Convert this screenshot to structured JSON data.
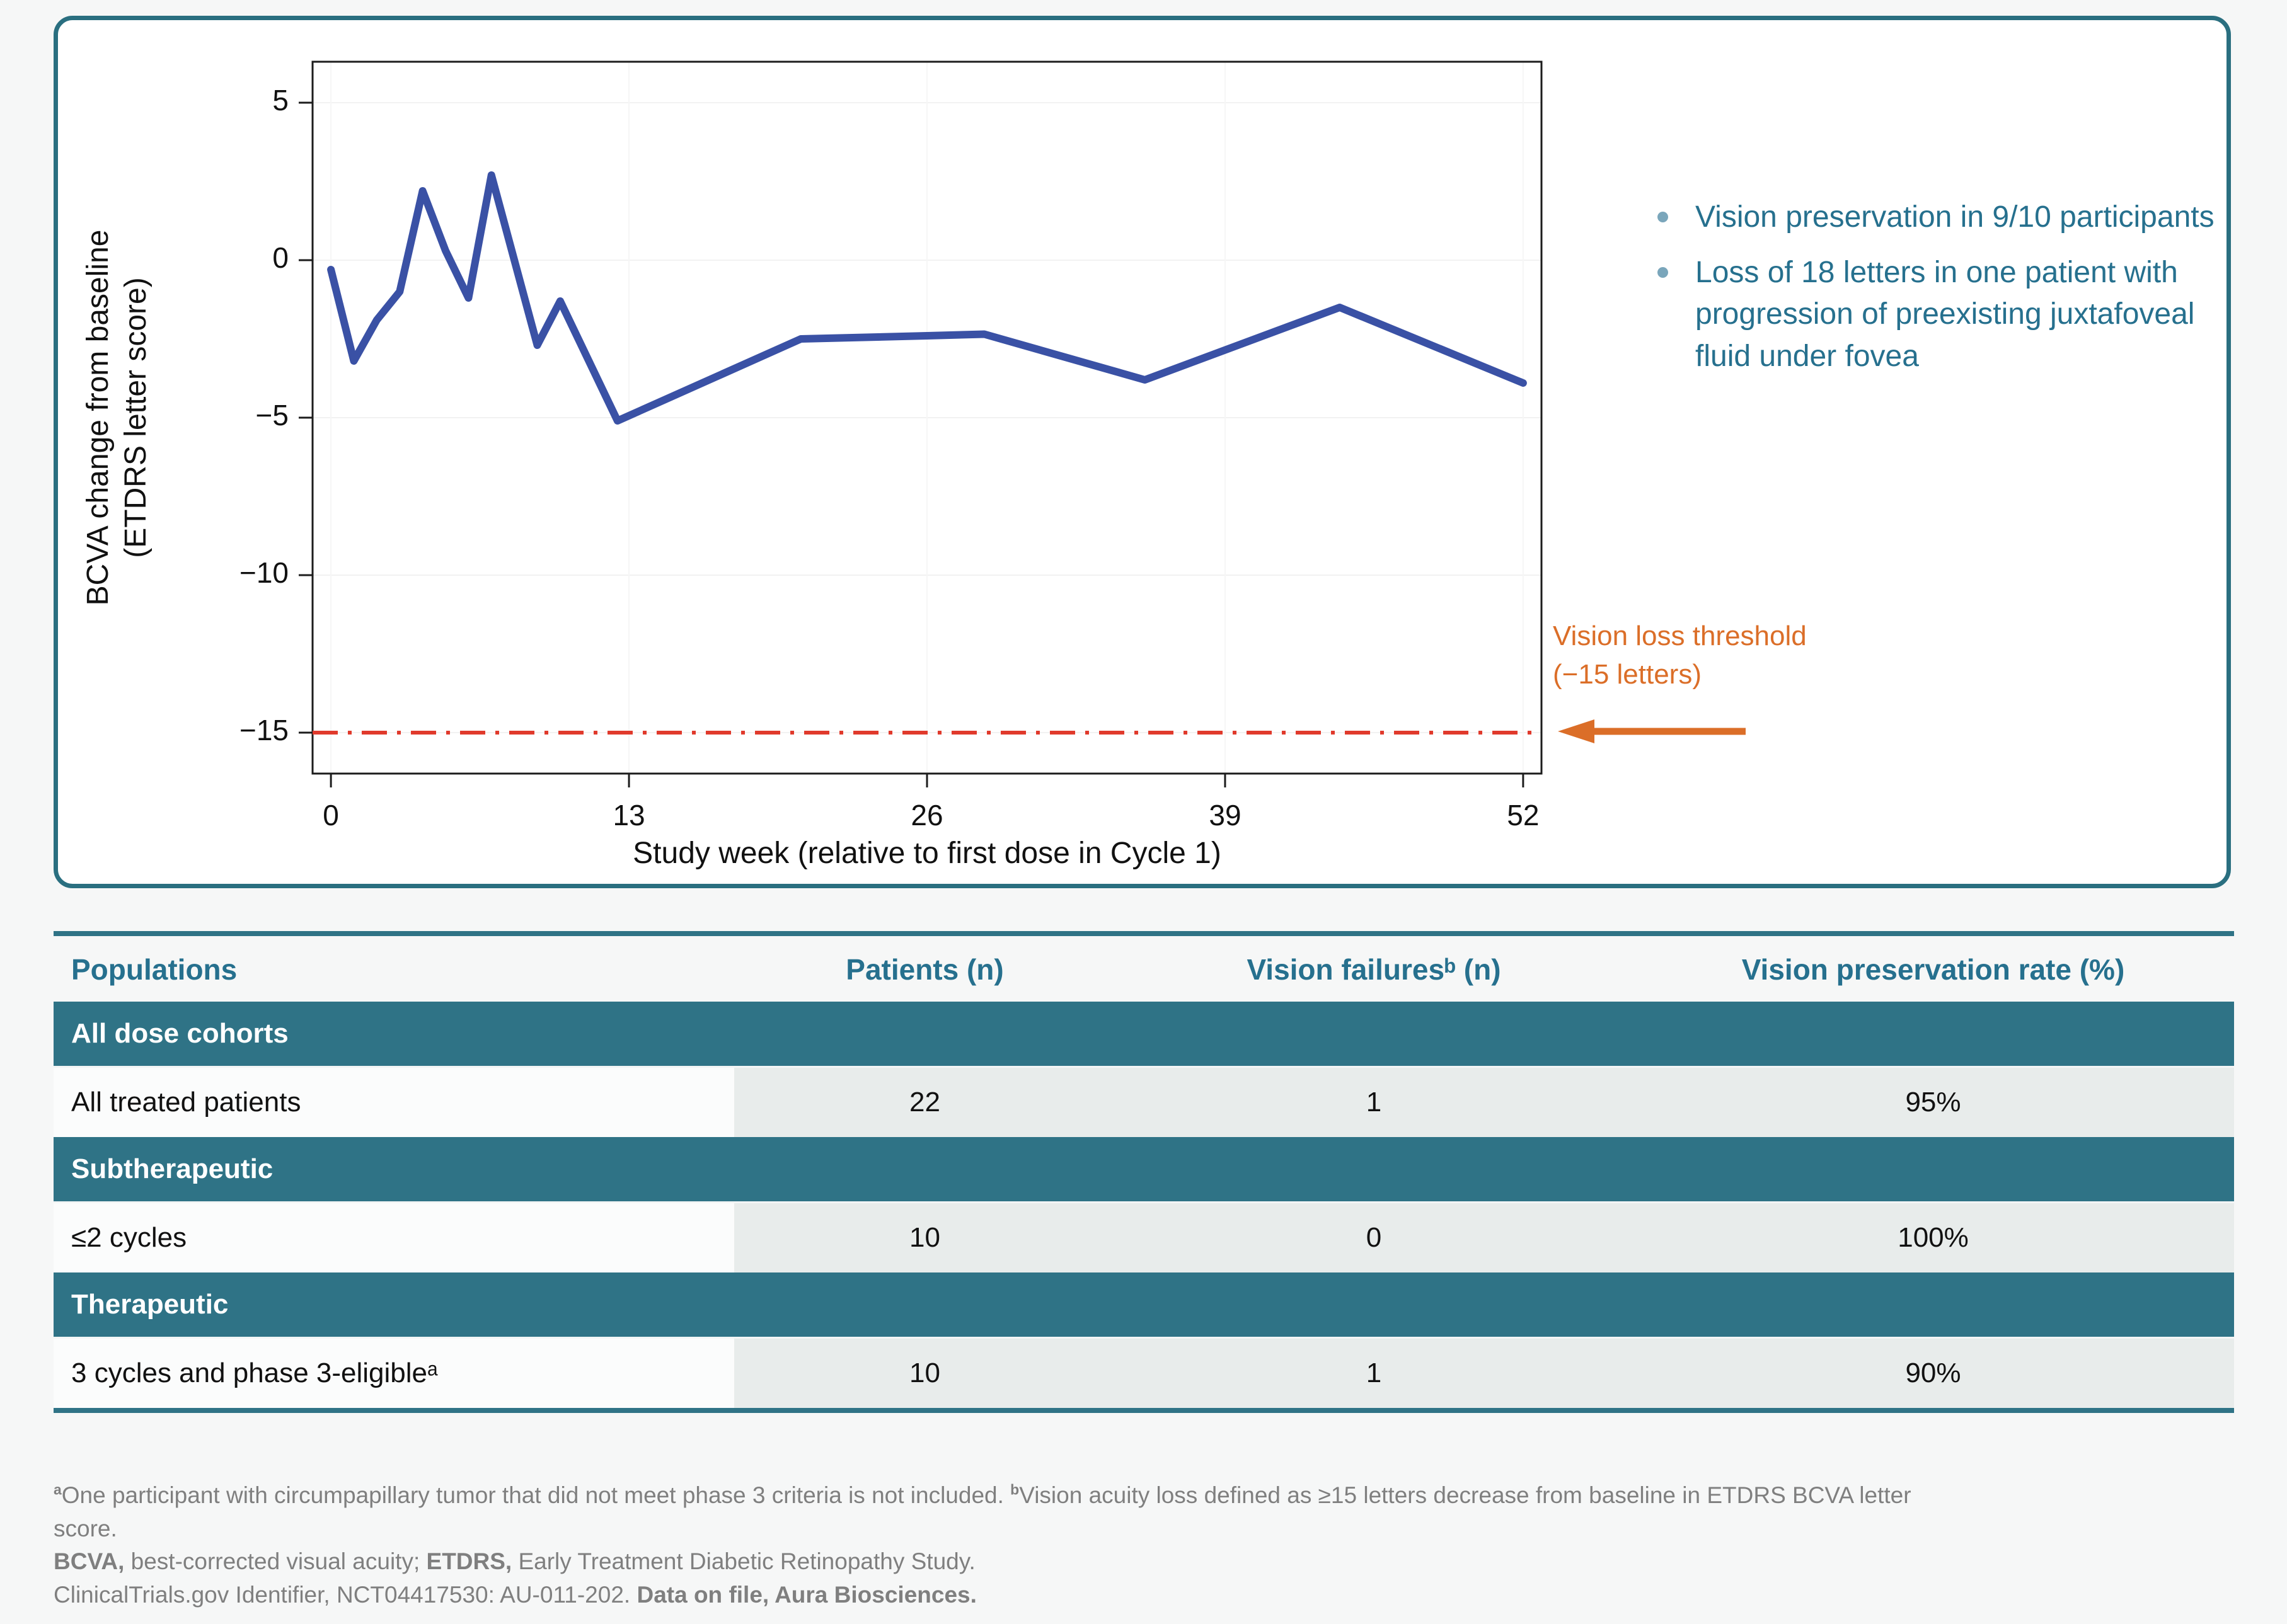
{
  "colors": {
    "teal": "#2f7386",
    "teal_text": "#26708e",
    "teal_border": "#2a6f80",
    "line_blue": "#3a51a5",
    "threshold_red": "#e03a2c",
    "arrow_orange": "#db6e28",
    "footnote_gray": "#7f7f7f"
  },
  "chart_data": {
    "type": "line",
    "title": "",
    "xlabel": "Study week (relative to first dose in Cycle 1)",
    "ylabel_line1": "BCVA change from baseline",
    "ylabel_line2": "(ETDRS letter score)",
    "x_ticks": [
      0,
      13,
      26,
      39,
      52
    ],
    "y_ticks": [
      5,
      0,
      -5,
      -10,
      -15
    ],
    "xlim": [
      -0.8,
      52.8
    ],
    "ylim": [
      -16.3,
      6.3
    ],
    "grid": "faint",
    "series": [
      {
        "name": "Mean BCVA change from baseline",
        "color": "#3a51a5",
        "x": [
          0,
          1,
          2,
          3,
          4,
          5,
          6,
          7,
          9,
          10,
          12.5,
          20.5,
          26,
          28.5,
          35.5,
          44,
          52
        ],
        "y": [
          -0.3,
          -3.2,
          -1.9,
          -1.0,
          2.2,
          0.3,
          -1.2,
          2.7,
          -2.7,
          -1.3,
          -5.1,
          -2.5,
          -2.4,
          -2.35,
          -3.8,
          -1.5,
          -3.9
        ]
      }
    ],
    "threshold": {
      "y": -15,
      "line_color": "#e03a2c",
      "label_line1": "Vision loss threshold",
      "label_line2": "(−15 letters)",
      "label_color": "#db6e28"
    }
  },
  "annotations": {
    "bullets": [
      "Vision preservation in 9/10 participants",
      "Loss of 18 letters in one patient with progression of preexisting juxtafoveal fluid under fovea"
    ]
  },
  "table": {
    "headers": [
      "Populations",
      "Patients (n)",
      "Vision failuresᵇ (n)",
      "Vision preservation rate (%)"
    ],
    "sections": [
      {
        "title": "All dose cohorts",
        "rows": [
          {
            "label": "All treated patients",
            "patients": "22",
            "failures": "1",
            "rate": "95%"
          }
        ]
      },
      {
        "title": "Subtherapeutic",
        "rows": [
          {
            "label": "≤2 cycles",
            "patients": "10",
            "failures": "0",
            "rate": "100%"
          }
        ]
      },
      {
        "title": "Therapeutic",
        "rows": [
          {
            "label": "3 cycles and phase 3-eligibleᵃ",
            "patients": "10",
            "failures": "1",
            "rate": "90%"
          }
        ]
      }
    ]
  },
  "footnotes": {
    "fn1_sup_a": "a",
    "fn1_text_a": "One participant with circumpapillary tumor that did not meet phase 3 criteria is not included. ",
    "fn1_sup_b": "b",
    "fn1_text_b": "Vision acuity loss defined as ≥15 letters decrease from baseline in ETDRS BCVA letter score.",
    "fn2_bold_1": "BCVA,",
    "fn2_text_1": " best-corrected visual acuity; ",
    "fn2_bold_2": "ETDRS,",
    "fn2_text_2": " Early Treatment Diabetic Retinopathy Study.",
    "fn3_text": "ClinicalTrials.gov Identifier, NCT04417530: AU-011-202. ",
    "fn3_bold": "Data on file, Aura Biosciences."
  }
}
